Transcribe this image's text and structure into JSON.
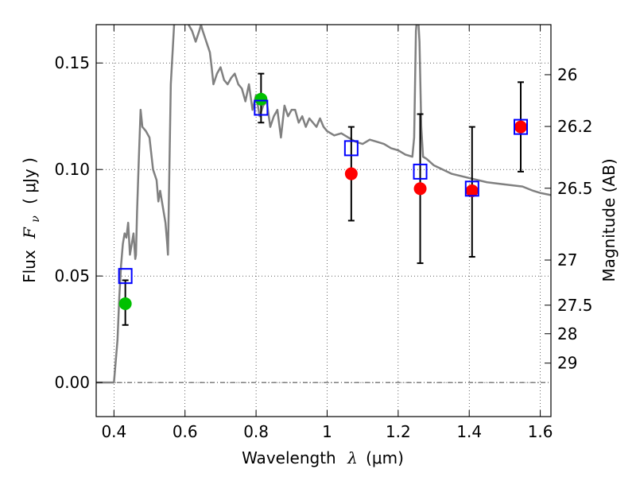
{
  "chart_data": {
    "type": "scatter",
    "title": "",
    "xlabel": "Wavelength  λ (μm)",
    "ylabel": "Flux  F_ν  ( μJy )",
    "ylabel_parts": {
      "prefix": "Flux",
      "symbol": "F",
      "subscript": "ν",
      "unit": "( μJy )"
    },
    "xlabel_parts": {
      "prefix": "Wavelength",
      "symbol": "λ",
      "unit": "(μm)"
    },
    "y2label": "Magnitude (AB)",
    "xlim": [
      0.35,
      1.63
    ],
    "ylim": [
      -0.016,
      0.168
    ],
    "grid": true,
    "x_ticks": [
      {
        "value": 0.4,
        "label": "0.4"
      },
      {
        "value": 0.6,
        "label": "0.6"
      },
      {
        "value": 0.8,
        "label": "0.8"
      },
      {
        "value": 1.0,
        "label": "1"
      },
      {
        "value": 1.2,
        "label": "1.2"
      },
      {
        "value": 1.4,
        "label": "1.4"
      },
      {
        "value": 1.6,
        "label": "1.6"
      }
    ],
    "y_ticks": [
      {
        "value": 0.0,
        "label": "0.00"
      },
      {
        "value": 0.05,
        "label": "0.05"
      },
      {
        "value": 0.1,
        "label": "0.10"
      },
      {
        "value": 0.15,
        "label": "0.15"
      }
    ],
    "y2_ticks": [
      {
        "label": "26",
        "flux": 0.1445
      },
      {
        "label": "26.2",
        "flux": 0.1202
      },
      {
        "label": "26.5",
        "flux": 0.0912
      },
      {
        "label": "27",
        "flux": 0.0575
      },
      {
        "label": "27.5",
        "flux": 0.0363
      },
      {
        "label": "28",
        "flux": 0.0229
      },
      {
        "label": "29",
        "flux": 0.0091
      }
    ],
    "zero_line": 0.0,
    "model_sed": {
      "color": "#808080",
      "x": [
        0.35,
        0.4,
        0.405,
        0.41,
        0.415,
        0.42,
        0.425,
        0.43,
        0.435,
        0.44,
        0.445,
        0.45,
        0.455,
        0.46,
        0.462,
        0.465,
        0.47,
        0.475,
        0.48,
        0.49,
        0.5,
        0.51,
        0.52,
        0.525,
        0.53,
        0.535,
        0.54,
        0.545,
        0.55,
        0.552,
        0.555,
        0.56,
        0.57,
        0.58,
        0.59,
        0.6,
        0.61,
        0.62,
        0.63,
        0.64,
        0.645,
        0.65,
        0.66,
        0.67,
        0.675,
        0.68,
        0.69,
        0.7,
        0.71,
        0.72,
        0.73,
        0.74,
        0.75,
        0.76,
        0.77,
        0.78,
        0.79,
        0.8,
        0.81,
        0.82,
        0.83,
        0.84,
        0.85,
        0.86,
        0.87,
        0.88,
        0.89,
        0.9,
        0.91,
        0.92,
        0.93,
        0.94,
        0.95,
        0.96,
        0.97,
        0.98,
        0.99,
        1.0,
        1.02,
        1.04,
        1.06,
        1.08,
        1.1,
        1.12,
        1.14,
        1.16,
        1.18,
        1.2,
        1.22,
        1.24,
        1.245,
        1.25,
        1.255,
        1.26,
        1.265,
        1.27,
        1.28,
        1.3,
        1.35,
        1.4,
        1.45,
        1.5,
        1.55,
        1.58,
        1.6,
        1.63
      ],
      "y": [
        0.0,
        0.0,
        0.01,
        0.02,
        0.04,
        0.055,
        0.065,
        0.07,
        0.068,
        0.075,
        0.06,
        0.065,
        0.07,
        0.058,
        0.06,
        0.08,
        0.105,
        0.128,
        0.12,
        0.118,
        0.115,
        0.1,
        0.095,
        0.085,
        0.09,
        0.085,
        0.08,
        0.075,
        0.065,
        0.06,
        0.09,
        0.14,
        0.17,
        0.17,
        0.172,
        0.17,
        0.168,
        0.165,
        0.16,
        0.165,
        0.168,
        0.165,
        0.16,
        0.155,
        0.148,
        0.14,
        0.145,
        0.148,
        0.142,
        0.14,
        0.143,
        0.145,
        0.14,
        0.138,
        0.132,
        0.14,
        0.128,
        0.135,
        0.125,
        0.13,
        0.132,
        0.12,
        0.125,
        0.128,
        0.115,
        0.13,
        0.125,
        0.128,
        0.128,
        0.122,
        0.125,
        0.12,
        0.124,
        0.122,
        0.12,
        0.124,
        0.12,
        0.118,
        0.116,
        0.117,
        0.115,
        0.113,
        0.112,
        0.114,
        0.113,
        0.112,
        0.11,
        0.109,
        0.107,
        0.106,
        0.115,
        0.165,
        0.175,
        0.16,
        0.12,
        0.106,
        0.105,
        0.102,
        0.098,
        0.096,
        0.094,
        0.093,
        0.092,
        0.09,
        0.089,
        0.088
      ]
    },
    "observed_points": [
      {
        "x": 0.432,
        "y": 0.037,
        "err_low": 0.027,
        "err_high": 0.048,
        "color": "#00c000"
      },
      {
        "x": 0.814,
        "y": 0.133,
        "err_low": 0.122,
        "err_high": 0.145,
        "color": "#00c000"
      },
      {
        "x": 1.068,
        "y": 0.098,
        "err_low": 0.076,
        "err_high": 0.12,
        "color": "#ff0000"
      },
      {
        "x": 1.262,
        "y": 0.091,
        "err_low": 0.056,
        "err_high": 0.126,
        "color": "#ff0000"
      },
      {
        "x": 1.408,
        "y": 0.09,
        "err_low": 0.059,
        "err_high": 0.12,
        "color": "#ff0000"
      },
      {
        "x": 1.545,
        "y": 0.12,
        "err_low": 0.099,
        "err_high": 0.141,
        "color": "#ff0000"
      }
    ],
    "model_points": {
      "color": "#0000ff",
      "x": [
        0.432,
        0.814,
        1.068,
        1.262,
        1.408,
        1.545
      ],
      "y": [
        0.05,
        0.129,
        0.11,
        0.099,
        0.091,
        0.12
      ]
    }
  }
}
